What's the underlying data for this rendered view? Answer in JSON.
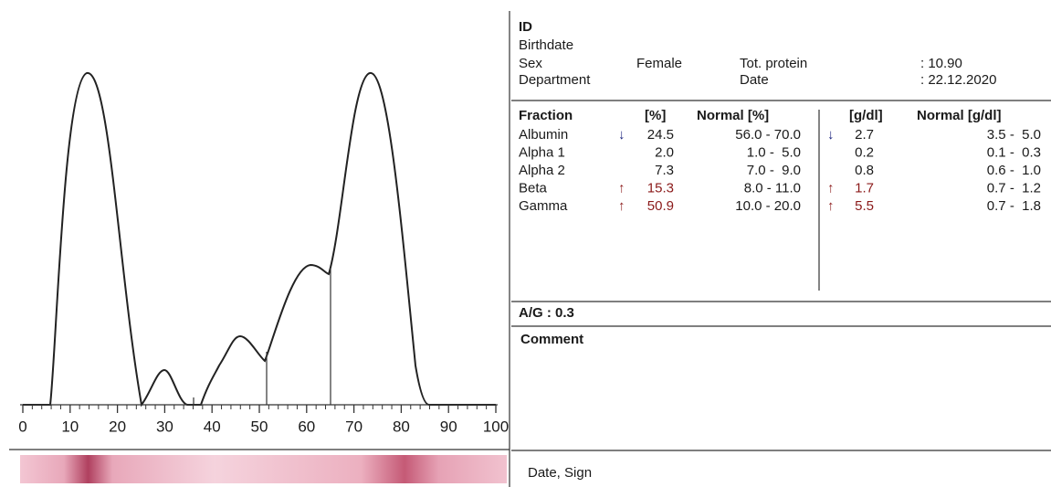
{
  "electrophoregram": {
    "xlim": [
      0,
      100
    ],
    "xticks": [
      0,
      10,
      20,
      30,
      40,
      50,
      60,
      70,
      80,
      90,
      100
    ]
  },
  "patient": {
    "id_label": "ID",
    "birthdate_label": "Birthdate",
    "sex_label": "Sex",
    "sex": "Female",
    "department_label": "Department",
    "total_protein_label": "Tot. protein",
    "total_protein": ": 10.90",
    "date_label": "Date",
    "date": ": 22.12.2020"
  },
  "table": {
    "header": [
      "Fraction",
      "[%]",
      "Normal [%]",
      "[g/dl]",
      "Normal [g/dl]"
    ],
    "rows": [
      {
        "fraction": "Albumin",
        "pct_flag": "↓",
        "pct": "24.5",
        "pct_normal": "56.0 - 70.0",
        "gdl_flag": "↓",
        "gdl": "2.7",
        "gdl_normal": "3.5 -  5.0"
      },
      {
        "fraction": "Alpha 1",
        "pct_flag": "",
        "pct": "2.0",
        "pct_normal": "1.0 -  5.0",
        "gdl_flag": "",
        "gdl": "0.2",
        "gdl_normal": "0.1 -  0.3"
      },
      {
        "fraction": "Alpha 2",
        "pct_flag": "",
        "pct": "7.3",
        "pct_normal": "7.0 -  9.0",
        "gdl_flag": "",
        "gdl": "0.8",
        "gdl_normal": "0.6 -  1.0"
      },
      {
        "fraction": "Beta",
        "pct_flag": "↑",
        "pct": "15.3",
        "pct_normal": "8.0 - 11.0",
        "gdl_flag": "↑",
        "gdl": "1.7",
        "gdl_normal": "0.7 -  1.2"
      },
      {
        "fraction": "Gamma",
        "pct_flag": "↑",
        "pct": "50.9",
        "pct_normal": "10.0 - 20.0",
        "gdl_flag": "↑",
        "gdl": "5.5",
        "gdl_normal": "0.7 -  1.8"
      }
    ]
  },
  "ag_ratio": "A/G : 0.3",
  "comment_label": "Comment",
  "sign_label": "Date, Sign"
}
